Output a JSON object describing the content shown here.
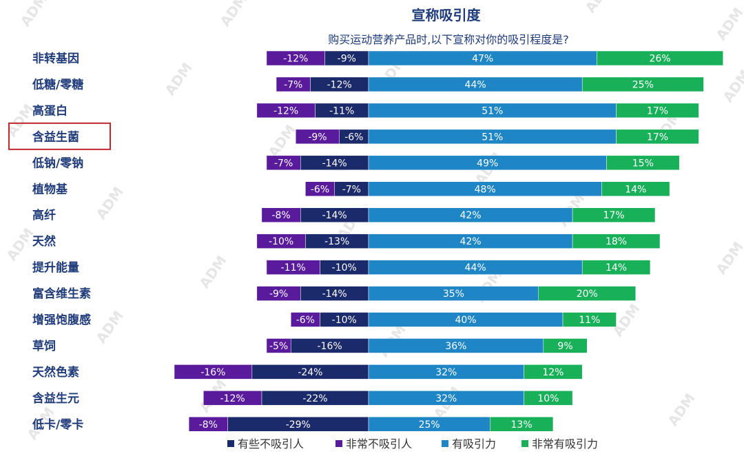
{
  "chart_data": {
    "type": "bar",
    "stacked": "diverging",
    "title": "宣称吸引度",
    "subtitle": "购买运动营养产品时,以下宣称对你的吸引程度是?",
    "categories": [
      "非转基因",
      "低糖/零糖",
      "高蛋白",
      "含益生菌",
      "低钠/零钠",
      "植物基",
      "高纤",
      "天然",
      "提升能量",
      "富含维生素",
      "增强饱腹感",
      "草饲",
      "天然色素",
      "含益生元",
      "低卡/零卡"
    ],
    "highlight": "含益生菌",
    "series": [
      {
        "name": "有些不吸引人",
        "color": "#1b2a6b",
        "side": "negative",
        "values": [
          -9,
          -12,
          -11,
          -6,
          -14,
          -7,
          -14,
          -13,
          -10,
          -14,
          -10,
          -16,
          -24,
          -22,
          -29
        ]
      },
      {
        "name": "非常不吸引人",
        "color": "#5a1a9c",
        "side": "negative",
        "values": [
          -12,
          -7,
          -12,
          -9,
          -7,
          -6,
          -8,
          -10,
          -11,
          -9,
          -6,
          -5,
          -16,
          -12,
          -8
        ]
      },
      {
        "name": "有吸引力",
        "color": "#1f86c5",
        "side": "positive",
        "values": [
          47,
          44,
          51,
          51,
          49,
          48,
          42,
          42,
          44,
          35,
          40,
          36,
          32,
          32,
          25
        ]
      },
      {
        "name": "非常有吸引力",
        "color": "#19b05a",
        "side": "positive",
        "values": [
          26,
          25,
          17,
          17,
          15,
          14,
          17,
          18,
          14,
          20,
          11,
          9,
          12,
          10,
          13
        ]
      }
    ],
    "legend_order": [
      "有些不吸引人",
      "非常不吸引人",
      "有吸引力",
      "非常有吸引力"
    ],
    "legend_position": "bottom",
    "value_suffix": "%"
  },
  "watermark_text": "ADM",
  "highlight_color": "#c0282d"
}
